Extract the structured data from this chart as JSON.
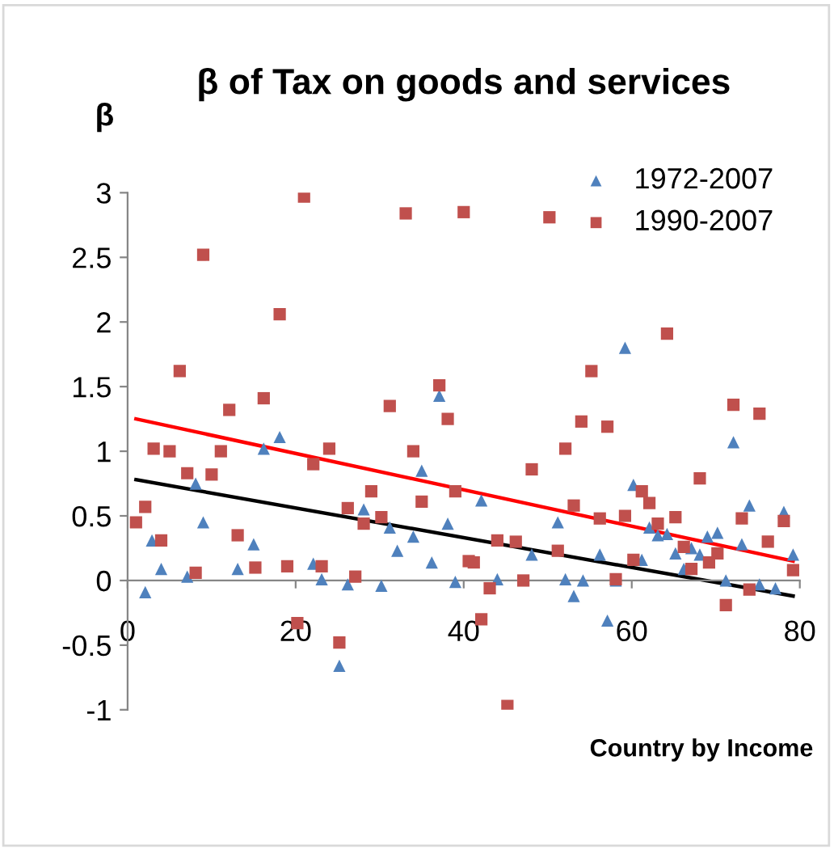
{
  "chart_data": {
    "type": "scatter",
    "title": "β of Tax on goods and services",
    "ylabel": "β",
    "xlabel": "Country by Income",
    "xlim": [
      0,
      80
    ],
    "xticks": [
      0,
      20,
      40,
      60,
      80
    ],
    "ylim": [
      -1,
      3
    ],
    "yticks": [
      -1,
      -0.5,
      0,
      0.5,
      1,
      1.5,
      2,
      2.5,
      3
    ],
    "grid": false,
    "legend": "top right",
    "series": [
      {
        "name": "1972-2007",
        "marker": "triangle",
        "color": "#4f81bd",
        "x": [
          2.1,
          2.9,
          4.0,
          7.1,
          8.1,
          9.0,
          13.1,
          15,
          16.2,
          18.1,
          22.1,
          23.1,
          25.2,
          26.2,
          28.1,
          30.2,
          31.2,
          32.1,
          34,
          35,
          36.2,
          37.1,
          38.1,
          39,
          42.1,
          44.0,
          48.1,
          51.2,
          52.1,
          53.1,
          54.2,
          56.2,
          57.1,
          58.1,
          59.2,
          60.2,
          61.2,
          62.1,
          63.1,
          64.2,
          65.2,
          66.2,
          67.1,
          68.1,
          69.0,
          70.2,
          71.2,
          72.1,
          73.1,
          74.0,
          75.2,
          77.1,
          78.1,
          79.2
        ],
        "values": [
          -0.09,
          0.31,
          0.09,
          0.03,
          0.75,
          0.45,
          0.09,
          0.28,
          1.02,
          1.11,
          0.13,
          0.01,
          -0.66,
          -0.03,
          0.55,
          -0.04,
          0.41,
          0.23,
          0.34,
          0.85,
          0.14,
          1.43,
          0.44,
          -0.01,
          0.62,
          0.01,
          0.2,
          0.45,
          0.01,
          -0.12,
          0.0,
          0.2,
          -0.31,
          0.0,
          1.8,
          0.74,
          0.16,
          0.41,
          0.35,
          0.36,
          0.21,
          0.09,
          0.25,
          0.2,
          0.34,
          0.37,
          0.0,
          1.07,
          0.28,
          0.58,
          -0.03,
          -0.06,
          0.53,
          0.2
        ]
      },
      {
        "name": "1990-2007",
        "marker": "square",
        "color": "#c0504d",
        "x": [
          1.0,
          2.1,
          3.1,
          4,
          5,
          6.2,
          7.1,
          8.1,
          9.0,
          10,
          11.1,
          12.1,
          13.1,
          15.2,
          16.2,
          18.1,
          19,
          20.2,
          21,
          22.1,
          23.1,
          24,
          25.2,
          26.2,
          27.1,
          28.1,
          29,
          30.2,
          31.2,
          33.1,
          34,
          35,
          37.1,
          38.1,
          39,
          40,
          40.6,
          41.2,
          42.1,
          43.1,
          44,
          45.2,
          46.2,
          47.1,
          48.1,
          50.2,
          51.2,
          52.1,
          53.1,
          54,
          55.2,
          56.2,
          57.1,
          58.1,
          59.2,
          60.2,
          61.2,
          62.1,
          63.1,
          64.2,
          65.2,
          66.2,
          67.1,
          68.1,
          69.2,
          70.2,
          71.2,
          72.1,
          73.1,
          74,
          75.2,
          76.2,
          78.1,
          79.2
        ],
        "values": [
          0.45,
          0.57,
          1.02,
          0.31,
          1.0,
          1.62,
          0.83,
          0.06,
          2.52,
          0.82,
          1.0,
          1.32,
          0.35,
          0.1,
          1.41,
          2.06,
          0.11,
          -0.33,
          2.97,
          0.9,
          0.11,
          1.02,
          -0.48,
          0.56,
          0.03,
          0.44,
          0.69,
          0.49,
          1.35,
          2.84,
          1.0,
          0.61,
          1.51,
          1.25,
          0.69,
          2.85,
          0.15,
          0.14,
          -0.3,
          -0.06,
          0.31,
          -0.97,
          0.3,
          0.0,
          0.86,
          2.81,
          0.23,
          1.02,
          0.58,
          1.23,
          1.62,
          0.48,
          1.19,
          0.01,
          0.5,
          0.16,
          0.69,
          0.6,
          0.44,
          1.91,
          0.49,
          0.26,
          0.09,
          0.79,
          0.14,
          0.21,
          -0.19,
          1.36,
          0.48,
          -0.07,
          1.29,
          0.3,
          0.46,
          0.08
        ]
      },
      {
        "type": "line",
        "color": "#ff0000",
        "x": [
          1,
          79.2
        ],
        "values": [
          1.25,
          0.15
        ]
      },
      {
        "type": "line",
        "color": "#000000",
        "x": [
          1,
          79.2
        ],
        "values": [
          0.78,
          -0.12
        ]
      }
    ]
  }
}
